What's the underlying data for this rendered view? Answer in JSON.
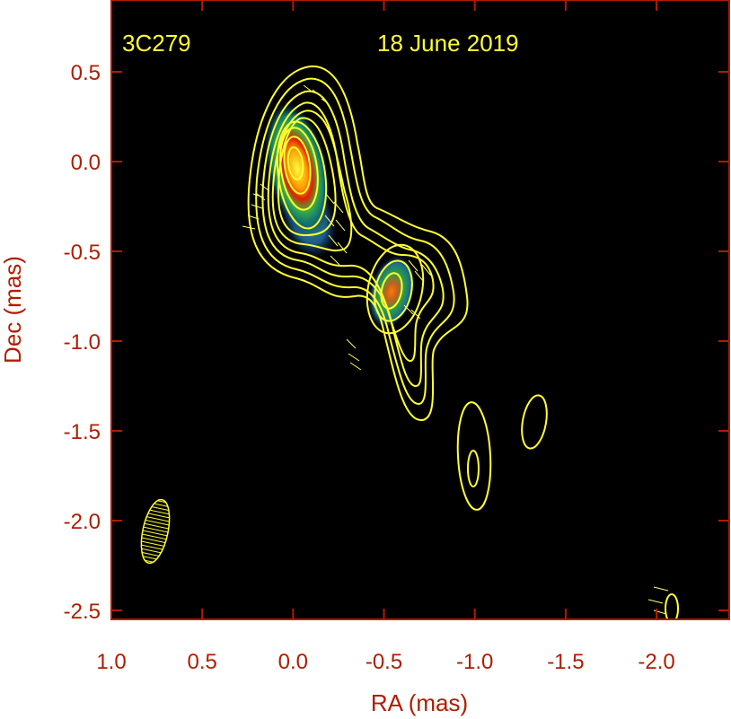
{
  "chart_data": {
    "type": "contour",
    "source": "3C279",
    "date": "18 June 2019",
    "xlabel": "RA (mas)",
    "ylabel": "Dec (mas)",
    "xlim": [
      1.0,
      -2.4
    ],
    "ylim": [
      -2.55,
      0.9
    ],
    "xticks": [
      1.0,
      0.5,
      0.0,
      -0.5,
      -1.0,
      -1.5,
      -2.0
    ],
    "xtick_labels": [
      "1.0",
      "0.5",
      "0.0",
      "-0.5",
      "-1.0",
      "-1.5",
      "-2.0"
    ],
    "yticks": [
      0.5,
      0.0,
      -0.5,
      -1.0,
      -1.5,
      -2.0,
      -2.5
    ],
    "ytick_labels": [
      "0.5",
      "0.0",
      "-0.5",
      "-1.0",
      "-1.5",
      "-2.0",
      "-2.5"
    ],
    "components": [
      {
        "ra": 0.0,
        "dec": 0.0
      },
      {
        "ra": -0.55,
        "dec": -0.72
      }
    ],
    "beam": {
      "ra": 0.8,
      "dec": -2.05,
      "major": 0.35,
      "minor": 0.14
    },
    "colors": {
      "background": "#000000",
      "axis_text": "#b01c00",
      "contour": "#ffff33",
      "annotation": "#ffff33"
    }
  }
}
